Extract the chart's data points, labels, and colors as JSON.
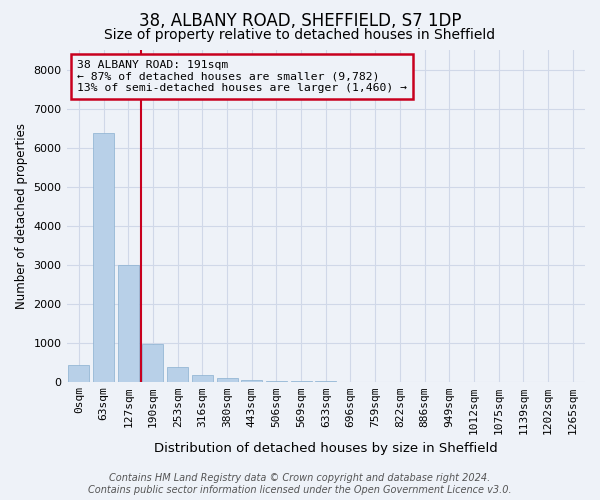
{
  "title": "38, ALBANY ROAD, SHEFFIELD, S7 1DP",
  "subtitle": "Size of property relative to detached houses in Sheffield",
  "xlabel": "Distribution of detached houses by size in Sheffield",
  "ylabel": "Number of detached properties",
  "categories": [
    "0sqm",
    "63sqm",
    "127sqm",
    "190sqm",
    "253sqm",
    "316sqm",
    "380sqm",
    "443sqm",
    "506sqm",
    "569sqm",
    "633sqm",
    "696sqm",
    "759sqm",
    "822sqm",
    "886sqm",
    "949sqm",
    "1012sqm",
    "1075sqm",
    "1139sqm",
    "1202sqm",
    "1265sqm"
  ],
  "values": [
    430,
    6380,
    3000,
    950,
    370,
    160,
    80,
    30,
    10,
    5,
    2,
    1,
    0,
    0,
    0,
    0,
    0,
    0,
    0,
    0,
    0
  ],
  "bar_color": "#b8d0e8",
  "highlight_index": 3,
  "highlight_color": "#c8001e",
  "annotation_line1": "38 ALBANY ROAD: 191sqm",
  "annotation_line2": "← 87% of detached houses are smaller (9,782)",
  "annotation_line3": "13% of semi-detached houses are larger (1,460) →",
  "annotation_box_color": "#c8001e",
  "footer_text": "Contains HM Land Registry data © Crown copyright and database right 2024.\nContains public sector information licensed under the Open Government Licence v3.0.",
  "ylim": [
    0,
    8500
  ],
  "bg_color": "#eef2f8",
  "grid_color": "#d0d8e8",
  "title_fontsize": 12,
  "subtitle_fontsize": 10
}
